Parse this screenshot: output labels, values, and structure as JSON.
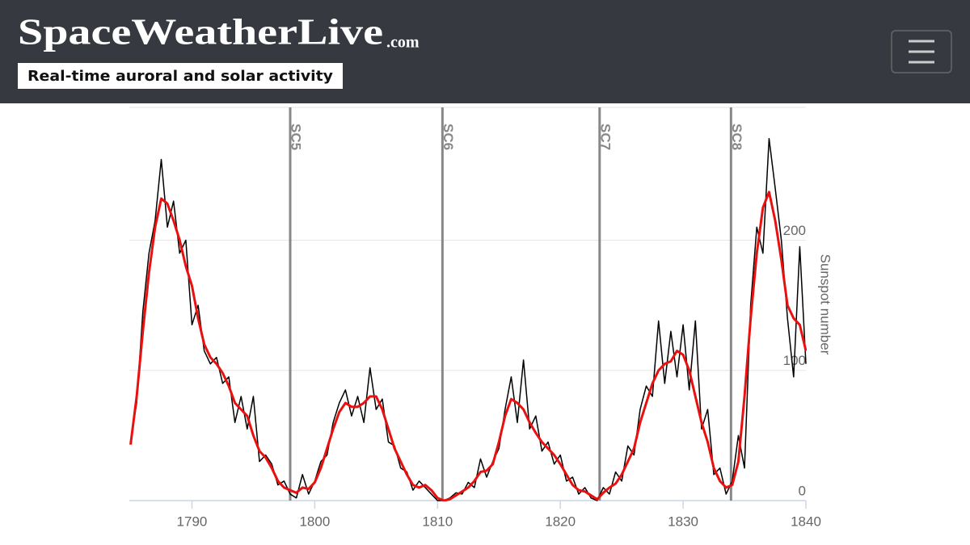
{
  "header": {
    "logo": "SpaceWeatherLive",
    "logo_suffix": ".com",
    "tagline": "Real-time auroral and solar activity"
  },
  "chart_data": {
    "type": "line",
    "y_axis_label": "Sunspot number",
    "x": [
      1785,
      1785.5,
      1786,
      1786.5,
      1787,
      1787.5,
      1788,
      1788.5,
      1789,
      1789.5,
      1790,
      1790.5,
      1791,
      1791.5,
      1792,
      1792.5,
      1793,
      1793.5,
      1794,
      1794.5,
      1795,
      1795.5,
      1796,
      1796.5,
      1797,
      1797.5,
      1798,
      1798.5,
      1799,
      1799.5,
      1800,
      1800.5,
      1801,
      1801.5,
      1802,
      1802.5,
      1803,
      1803.5,
      1804,
      1804.5,
      1805,
      1805.5,
      1806,
      1806.5,
      1807,
      1807.5,
      1808,
      1808.5,
      1809,
      1809.5,
      1810,
      1810.5,
      1811,
      1811.5,
      1812,
      1812.5,
      1813,
      1813.5,
      1814,
      1814.5,
      1815,
      1815.5,
      1816,
      1816.5,
      1817,
      1817.5,
      1818,
      1818.5,
      1819,
      1819.5,
      1820,
      1820.5,
      1821,
      1821.5,
      1822,
      1822.5,
      1823,
      1823.5,
      1824,
      1824.5,
      1825,
      1825.5,
      1826,
      1826.5,
      1827,
      1827.5,
      1828,
      1828.5,
      1829,
      1829.5,
      1830,
      1830.5,
      1831,
      1831.5,
      1832,
      1832.5,
      1833,
      1833.5,
      1834,
      1834.5,
      1835,
      1835.5,
      1836,
      1836.5,
      1837,
      1837.5,
      1838,
      1838.5,
      1839,
      1839.5,
      1840
    ],
    "series": [
      {
        "color": "#000000",
        "width": 1.5,
        "values": [
          45,
          75,
          145,
          190,
          215,
          262,
          210,
          230,
          190,
          200,
          135,
          150,
          115,
          105,
          110,
          90,
          95,
          60,
          80,
          55,
          80,
          30,
          35,
          28,
          12,
          15,
          5,
          2,
          20,
          5,
          15,
          30,
          35,
          60,
          75,
          85,
          65,
          80,
          60,
          102,
          70,
          78,
          45,
          42,
          25,
          22,
          8,
          15,
          10,
          5,
          0,
          0,
          2,
          6,
          5,
          14,
          10,
          32,
          18,
          30,
          40,
          70,
          95,
          60,
          108,
          55,
          65,
          38,
          45,
          28,
          35,
          15,
          18,
          5,
          10,
          2,
          0,
          10,
          5,
          22,
          15,
          42,
          35,
          70,
          88,
          80,
          138,
          90,
          130,
          95,
          135,
          85,
          138,
          55,
          70,
          20,
          25,
          5,
          15,
          50,
          25,
          150,
          210,
          190,
          278,
          240,
          200,
          140,
          95,
          195,
          105
        ]
      },
      {
        "color": "#e8110f",
        "width": 3,
        "values": [
          43,
          80,
          130,
          175,
          210,
          232,
          228,
          215,
          200,
          180,
          165,
          140,
          120,
          110,
          105,
          98,
          88,
          75,
          70,
          65,
          50,
          38,
          33,
          25,
          15,
          10,
          8,
          6,
          10,
          9,
          14,
          25,
          40,
          55,
          68,
          75,
          72,
          72,
          75,
          80,
          80,
          70,
          55,
          40,
          30,
          20,
          12,
          10,
          12,
          8,
          2,
          0,
          1,
          4,
          7,
          10,
          15,
          22,
          23,
          28,
          45,
          65,
          78,
          75,
          70,
          60,
          52,
          45,
          40,
          35,
          28,
          20,
          12,
          8,
          7,
          4,
          1,
          6,
          10,
          13,
          20,
          30,
          40,
          60,
          75,
          90,
          100,
          105,
          107,
          115,
          112,
          100,
          80,
          60,
          45,
          25,
          15,
          10,
          12,
          30,
          80,
          140,
          190,
          225,
          237,
          215,
          185,
          150,
          140,
          135,
          115
        ]
      }
    ],
    "cycles": [
      {
        "label": "SC5",
        "x": 1798.0
      },
      {
        "label": "SC6",
        "x": 1810.4
      },
      {
        "label": "SC7",
        "x": 1823.2
      },
      {
        "label": "SC8",
        "x": 1833.9
      }
    ],
    "xlim": [
      1784.9,
      1840
    ],
    "xticks": [
      1790,
      1800,
      1810,
      1820,
      1830,
      1840
    ],
    "ylim": [
      0,
      302
    ],
    "yticks": [
      0,
      100,
      200
    ],
    "grid": true
  }
}
